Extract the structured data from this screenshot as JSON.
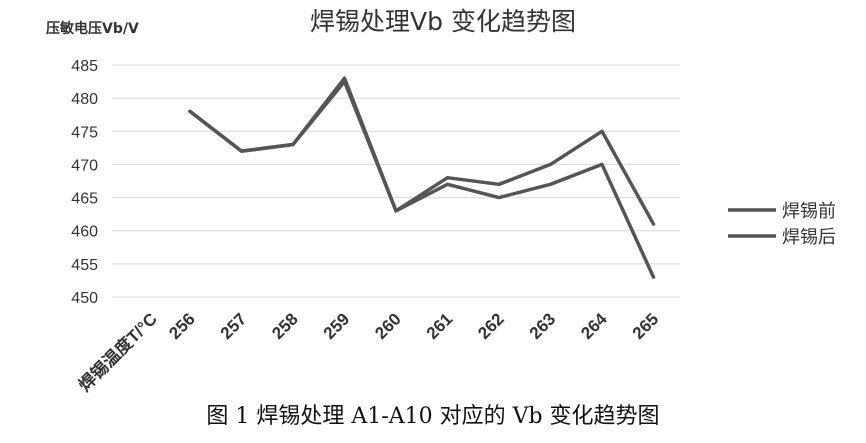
{
  "chart_data": {
    "type": "line",
    "title": "焊锡处理Vb 变化趋势图",
    "ylabel": "压敏电压Vb/V",
    "xlabel": "焊锡温度T/°C",
    "categories": [
      "256",
      "257",
      "258",
      "259",
      "260",
      "261",
      "262",
      "263",
      "264",
      "265"
    ],
    "series": [
      {
        "name": "焊锡前",
        "values": [
          478,
          472,
          473,
          483,
          463,
          468,
          467,
          470,
          475,
          461
        ]
      },
      {
        "name": "焊锡后",
        "values": [
          478,
          472,
          473,
          482.5,
          463,
          467,
          465,
          467,
          470,
          453
        ]
      }
    ],
    "ylim": [
      450,
      485
    ],
    "yticks": [
      "450",
      "455",
      "460",
      "465",
      "470",
      "475",
      "480",
      "485"
    ],
    "grid": true,
    "legend": "right",
    "colors": {
      "series": "#555555",
      "grid": "#d9d9d9",
      "text": "#333333"
    }
  },
  "caption": "图 1 焊锡处理 A1-A10 对应的 Vb 变化趋势图"
}
